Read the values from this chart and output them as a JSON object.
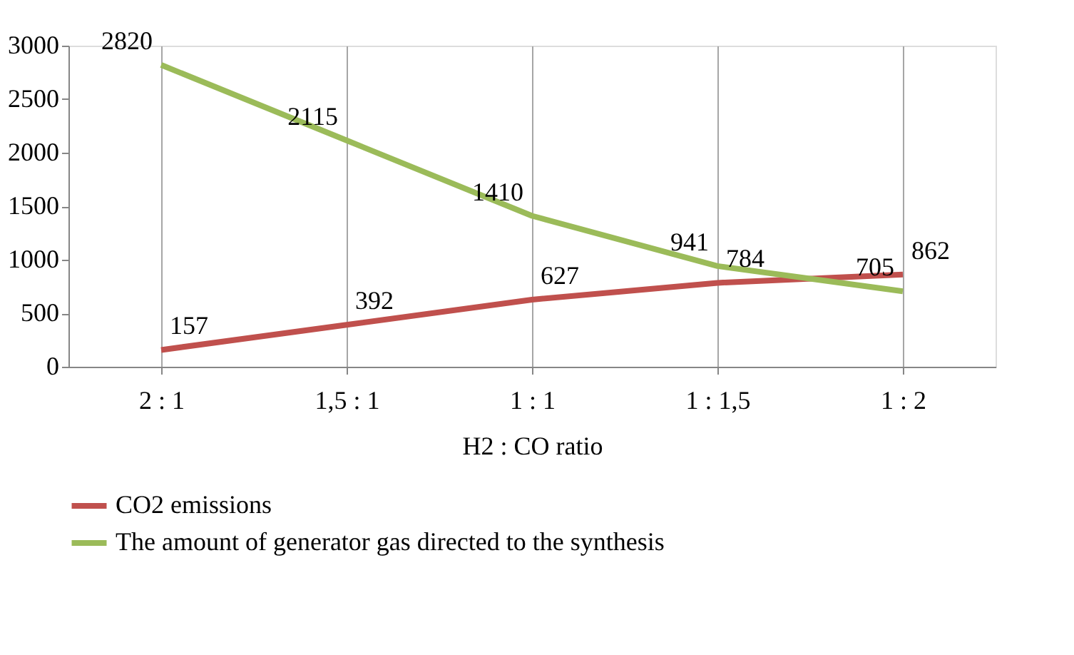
{
  "chart_data": {
    "type": "line",
    "xlabel": "H2 : CO ratio",
    "categories": [
      "2 : 1",
      "1,5 : 1",
      "1 : 1",
      "1 : 1,5",
      "1 : 2"
    ],
    "series": [
      {
        "name": "CO2 emissions",
        "color": "#c0504d",
        "values": [
          157,
          392,
          627,
          784,
          862
        ]
      },
      {
        "name": "The amount of generator gas directed to the synthesis",
        "color": "#9bbb59",
        "values": [
          2820,
          2115,
          1410,
          941,
          705
        ]
      }
    ],
    "ylim": [
      0,
      3000
    ],
    "yticks": [
      0,
      500,
      1000,
      1500,
      2000,
      2500,
      3000
    ],
    "grid": "x",
    "legend": "bottom",
    "data_labels": true,
    "marker": "none",
    "line_style": "solid"
  }
}
